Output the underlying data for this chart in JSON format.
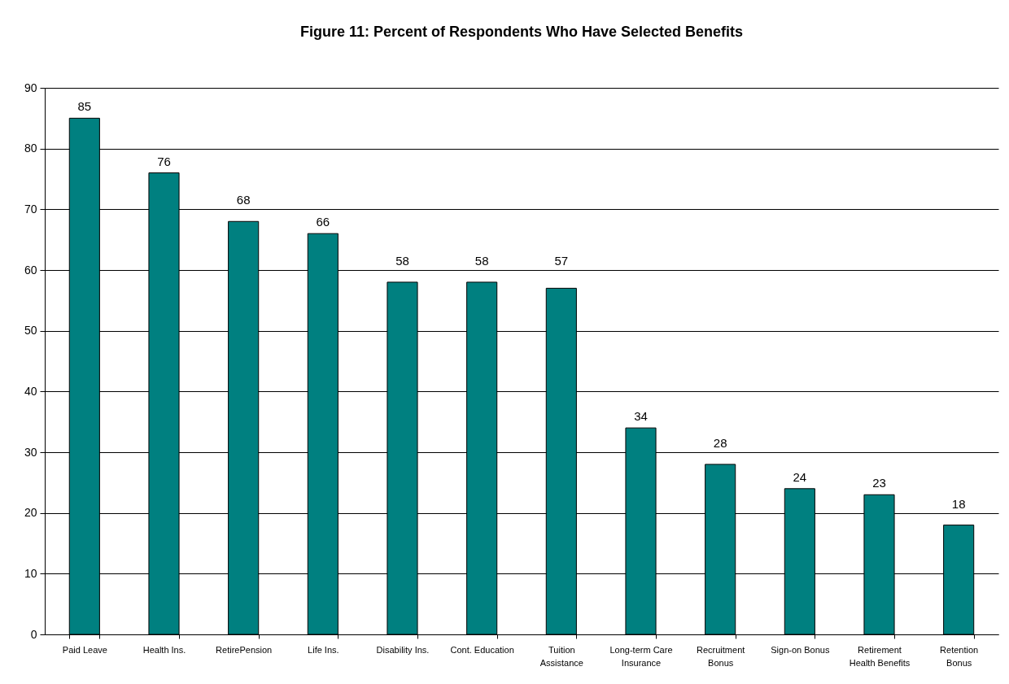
{
  "chart_data": {
    "type": "bar",
    "title": "Figure 11: Percent of Respondents Who Have Selected Benefits",
    "categories": [
      "Paid Leave",
      "Health Ins.",
      "RetirePension",
      "Life Ins.",
      "Disability Ins.",
      "Cont. Education",
      "Tuition Assistance",
      "Long-term Care Insurance",
      "Recruitment Bonus",
      "Sign-on Bonus",
      "Retirement Health Benefits",
      "Retention Bonus"
    ],
    "values": [
      85,
      76,
      68,
      66,
      58,
      58,
      57,
      34,
      28,
      24,
      23,
      18
    ],
    "color": "#008080",
    "ylim": [
      0,
      90
    ],
    "yticks": [
      0,
      10,
      20,
      30,
      40,
      50,
      60,
      70,
      80,
      90
    ],
    "grid": "y",
    "data_labels": true
  }
}
